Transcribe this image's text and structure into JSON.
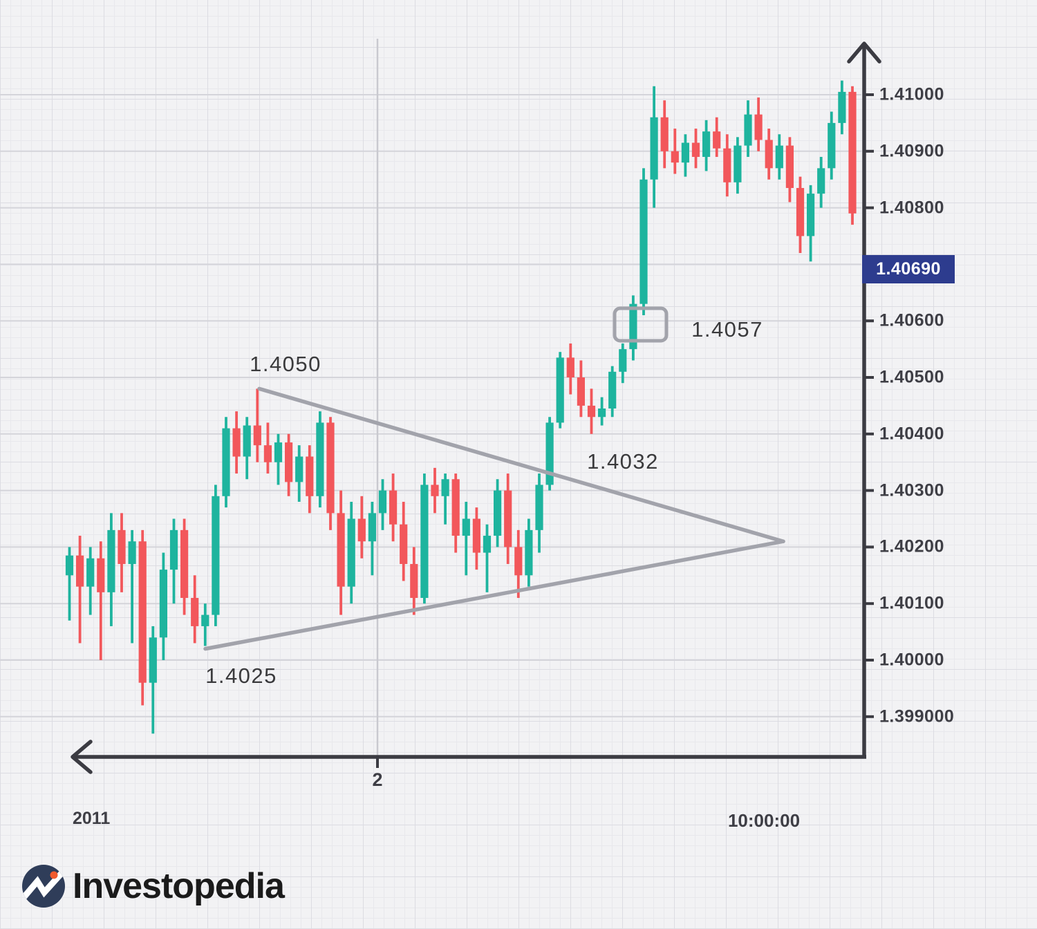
{
  "logo": {
    "text": "Investopedia"
  },
  "colors": {
    "background": "#f2f2f4",
    "grid_minor": "#e8e8ec",
    "grid_paper_major": "#dcdce2",
    "price_gridline": "#d4d4da",
    "month_gridline": "#c9c9cf",
    "axis": "#3b3b42",
    "candle_up": "#1eb49e",
    "candle_down": "#f2575b",
    "pattern_line": "#a2a3ab",
    "annotation_text": "#3a3a3c",
    "axis_label_text": "#3e3e45",
    "tag_bg": "#2d3c8e",
    "tag_text": "#ffffff",
    "logo_circle": "#2f3d59",
    "logo_dot": "#f05a2e",
    "logo_mark": "#ffffff",
    "logo_text_color": "#1b1b1b"
  },
  "chart_data": {
    "type": "candlestick",
    "title": "",
    "x_axis": {
      "year_label": "2011",
      "tick_label": "2",
      "time_label": "10:00:00"
    },
    "y_axis": {
      "labels": [
        {
          "label": "1.41000",
          "price": 1.41
        },
        {
          "label": "1.40900",
          "price": 1.409
        },
        {
          "label": "1.40800",
          "price": 1.408
        },
        {
          "label": "1.40600",
          "price": 1.406
        },
        {
          "label": "1.40500",
          "price": 1.405
        },
        {
          "label": "1.40400",
          "price": 1.404
        },
        {
          "label": "1.40300",
          "price": 1.403
        },
        {
          "label": "1.40200",
          "price": 1.402
        },
        {
          "label": "1.40100",
          "price": 1.401
        },
        {
          "label": "1.40000",
          "price": 1.4
        },
        {
          "label": "1.399000",
          "price": 1.399
        }
      ],
      "gridline_prices": [
        1.41,
        1.409,
        1.408,
        1.407,
        1.406,
        1.405,
        1.404,
        1.403,
        1.402,
        1.401,
        1.4,
        1.399
      ],
      "range": [
        1.3985,
        1.4105
      ]
    },
    "current_price": {
      "label": "1.40690",
      "value": 1.4069
    },
    "annotations": [
      {
        "id": "high-label",
        "text": "1.4050"
      },
      {
        "id": "low-label",
        "text": "1.4025"
      },
      {
        "id": "breakout-label",
        "text": "1.4032"
      },
      {
        "id": "retest-label",
        "text": "1.4057"
      }
    ],
    "pattern": {
      "name": "triangle",
      "upper_trendline": {
        "start_price": 1.4048,
        "end_price": 1.4021
      },
      "lower_trendline": {
        "start_price": 1.4002,
        "end_price": 1.4021
      }
    },
    "candles": [
      [
        1.4015,
        1.402,
        1.4007,
        1.40185
      ],
      [
        1.40185,
        1.4022,
        1.4003,
        1.4013
      ],
      [
        1.4013,
        1.402,
        1.4008,
        1.4018
      ],
      [
        1.4018,
        1.4021,
        1.4,
        1.4012
      ],
      [
        1.4012,
        1.4026,
        1.4006,
        1.4023
      ],
      [
        1.4023,
        1.4026,
        1.4012,
        1.4017
      ],
      [
        1.4017,
        1.4023,
        1.4003,
        1.4021
      ],
      [
        1.4021,
        1.4023,
        1.3992,
        1.3996
      ],
      [
        1.3996,
        1.4006,
        1.3987,
        1.4004
      ],
      [
        1.4004,
        1.4019,
        1.4,
        1.4016
      ],
      [
        1.4016,
        1.4025,
        1.401,
        1.4023
      ],
      [
        1.4023,
        1.4025,
        1.4008,
        1.4011
      ],
      [
        1.4011,
        1.4015,
        1.4003,
        1.4006
      ],
      [
        1.4006,
        1.401,
        1.40025,
        1.4008
      ],
      [
        1.4008,
        1.4031,
        1.4006,
        1.4029
      ],
      [
        1.4029,
        1.4043,
        1.4027,
        1.4041
      ],
      [
        1.4041,
        1.4044,
        1.4033,
        1.4036
      ],
      [
        1.4036,
        1.4043,
        1.4032,
        1.40415
      ],
      [
        1.40415,
        1.4048,
        1.4035,
        1.4038
      ],
      [
        1.4038,
        1.4042,
        1.4033,
        1.4035
      ],
      [
        1.4035,
        1.404,
        1.4031,
        1.40385
      ],
      [
        1.40385,
        1.404,
        1.4029,
        1.40315
      ],
      [
        1.40315,
        1.4038,
        1.4028,
        1.4036
      ],
      [
        1.4036,
        1.4038,
        1.4026,
        1.4029
      ],
      [
        1.4029,
        1.4044,
        1.4027,
        1.4042
      ],
      [
        1.4042,
        1.4043,
        1.4023,
        1.4026
      ],
      [
        1.4026,
        1.403,
        1.4008,
        1.4013
      ],
      [
        1.4013,
        1.4028,
        1.401,
        1.4025
      ],
      [
        1.4025,
        1.4029,
        1.4018,
        1.4021
      ],
      [
        1.4021,
        1.4028,
        1.4015,
        1.4026
      ],
      [
        1.4026,
        1.4032,
        1.4023,
        1.403
      ],
      [
        1.403,
        1.4033,
        1.4021,
        1.4024
      ],
      [
        1.4024,
        1.4028,
        1.4014,
        1.4017
      ],
      [
        1.4017,
        1.402,
        1.4008,
        1.4011
      ],
      [
        1.4011,
        1.4033,
        1.401,
        1.4031
      ],
      [
        1.4031,
        1.4034,
        1.4026,
        1.4029
      ],
      [
        1.4029,
        1.4033,
        1.4024,
        1.4032
      ],
      [
        1.4032,
        1.4033,
        1.4019,
        1.4022
      ],
      [
        1.4022,
        1.4028,
        1.4015,
        1.4025
      ],
      [
        1.4025,
        1.4027,
        1.4016,
        1.4019
      ],
      [
        1.4019,
        1.4024,
        1.4012,
        1.4022
      ],
      [
        1.4022,
        1.4032,
        1.402,
        1.403
      ],
      [
        1.403,
        1.4033,
        1.4017,
        1.402
      ],
      [
        1.402,
        1.4023,
        1.4011,
        1.4015
      ],
      [
        1.4015,
        1.4025,
        1.4013,
        1.4023
      ],
      [
        1.4023,
        1.4033,
        1.4019,
        1.4031
      ],
      [
        1.4031,
        1.4043,
        1.403,
        1.4042
      ],
      [
        1.4042,
        1.40545,
        1.4041,
        1.40535
      ],
      [
        1.40535,
        1.4056,
        1.4047,
        1.405
      ],
      [
        1.405,
        1.4053,
        1.4043,
        1.4045
      ],
      [
        1.4045,
        1.4048,
        1.404,
        1.4043
      ],
      [
        1.4043,
        1.40465,
        1.40415,
        1.40445
      ],
      [
        1.40445,
        1.4052,
        1.4043,
        1.4051
      ],
      [
        1.4051,
        1.4056,
        1.4049,
        1.4055
      ],
      [
        1.4055,
        1.40645,
        1.4053,
        1.4063
      ],
      [
        1.4063,
        1.4087,
        1.4061,
        1.4085
      ],
      [
        1.4085,
        1.41015,
        1.408,
        1.4096
      ],
      [
        1.4096,
        1.4099,
        1.4087,
        1.409
      ],
      [
        1.409,
        1.4094,
        1.4086,
        1.4088
      ],
      [
        1.4088,
        1.4093,
        1.40855,
        1.40915
      ],
      [
        1.40915,
        1.4094,
        1.4087,
        1.4089
      ],
      [
        1.4089,
        1.40955,
        1.40865,
        1.40935
      ],
      [
        1.40935,
        1.4096,
        1.4089,
        1.40905
      ],
      [
        1.40905,
        1.4093,
        1.4082,
        1.40845
      ],
      [
        1.40845,
        1.40925,
        1.40825,
        1.4091
      ],
      [
        1.4091,
        1.4099,
        1.4089,
        1.40965
      ],
      [
        1.40965,
        1.40995,
        1.409,
        1.4092
      ],
      [
        1.4092,
        1.4094,
        1.4085,
        1.4087
      ],
      [
        1.4087,
        1.4093,
        1.4085,
        1.4091
      ],
      [
        1.4091,
        1.40925,
        1.4081,
        1.40835
      ],
      [
        1.40835,
        1.40855,
        1.4072,
        1.4075
      ],
      [
        1.4075,
        1.4084,
        1.40705,
        1.40825
      ],
      [
        1.40825,
        1.4089,
        1.408,
        1.4087
      ],
      [
        1.4087,
        1.4097,
        1.4085,
        1.4095
      ],
      [
        1.4095,
        1.41025,
        1.4093,
        1.41005
      ],
      [
        1.41005,
        1.41015,
        1.4077,
        1.4079
      ]
    ]
  }
}
